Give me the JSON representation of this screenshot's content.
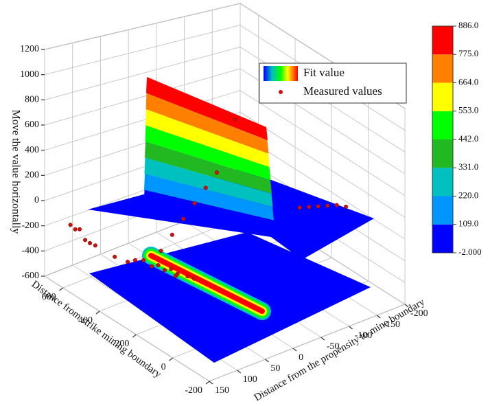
{
  "chart_data": {
    "type": "surface3d",
    "z_label": "Move the value horizontally",
    "x_label": "Distance from strike mining boundary",
    "y_label": "Distance from the propensity to mine boundary",
    "xlim": [
      -200,
      700
    ],
    "ylim": [
      -200,
      150
    ],
    "zlim": [
      -600,
      1200
    ],
    "xticks": [
      600,
      400,
      200,
      0,
      -200
    ],
    "yticks": [
      -200,
      -150,
      -100,
      -50,
      0,
      50,
      100,
      150
    ],
    "zticks": [
      -600,
      -400,
      -200,
      0,
      200,
      400,
      600,
      800,
      1000,
      1200
    ],
    "grid": true,
    "colorbar": {
      "ticks": [
        {
          "value": -2,
          "label": "-2.000"
        },
        {
          "value": 109,
          "label": "109.0"
        },
        {
          "value": 220,
          "label": "220.0"
        },
        {
          "value": 331,
          "label": "331.0"
        },
        {
          "value": 442,
          "label": "442.0"
        },
        {
          "value": 553,
          "label": "553.0"
        },
        {
          "value": 664,
          "label": "664.0"
        },
        {
          "value": 775,
          "label": "775.0"
        },
        {
          "value": 886,
          "label": "886.0"
        }
      ],
      "colors": [
        "#0000ff",
        "#0096ff",
        "#00c0c0",
        "#22b822",
        "#00ff00",
        "#ffff00",
        "#ff8000",
        "#ff0000"
      ]
    },
    "series": [
      {
        "name": "Fit value"
      },
      {
        "name": "Measured values",
        "color": "#cc1010",
        "x": [
          620,
          600,
          585,
          570,
          550,
          530,
          480,
          450,
          420,
          400,
          380,
          360,
          340,
          320,
          300,
          460,
          500,
          280,
          400,
          400,
          400,
          400,
          400,
          400,
          300,
          100,
          80,
          60,
          40,
          20,
          0
        ],
        "y": [
          130,
          128,
          125,
          120,
          118,
          115,
          60,
          55,
          50,
          45,
          40,
          35,
          30,
          40,
          25,
          80,
          90,
          20,
          40,
          20,
          0,
          -20,
          -40,
          -60,
          -60,
          -110,
          -120,
          -130,
          -140,
          -150,
          -160
        ],
        "z": [
          -150,
          -170,
          -160,
          -240,
          -250,
          -255,
          -420,
          -400,
          -430,
          -410,
          -440,
          -420,
          -450,
          -430,
          -440,
          -380,
          -360,
          -450,
          -300,
          -200,
          -100,
          0,
          100,
          200,
          760,
          120,
          130,
          140,
          150,
          160,
          150
        ]
      }
    ]
  }
}
